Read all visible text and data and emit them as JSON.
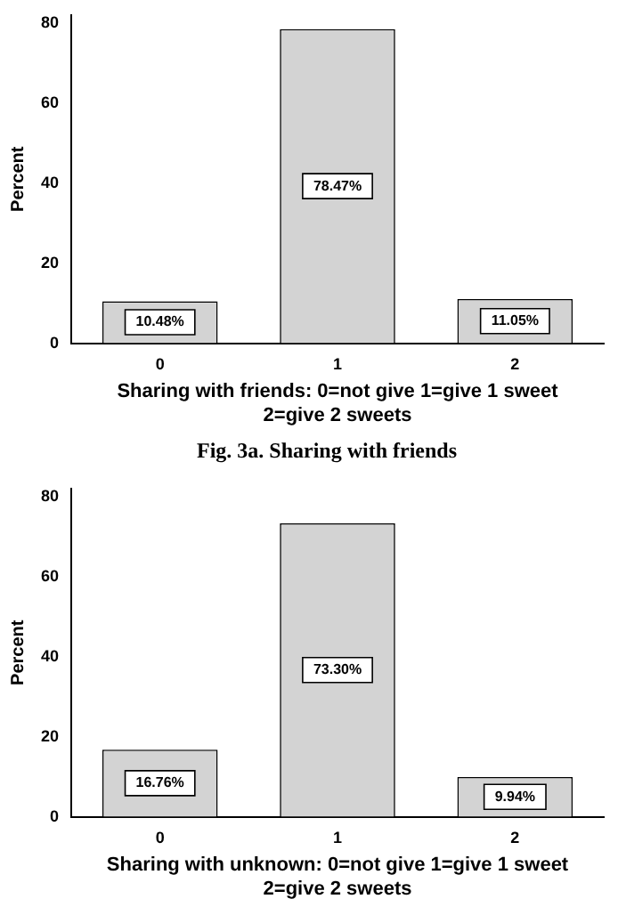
{
  "chart_data": [
    {
      "type": "bar",
      "ylabel": "Percent",
      "xlabel": "Sharing with friends: 0=not give 1=give 1 sweet\n2=give 2 sweets",
      "categories": [
        "0",
        "1",
        "2"
      ],
      "values": [
        10.48,
        78.47,
        11.05
      ],
      "value_labels": [
        "10.48%",
        "78.47%",
        "11.05%"
      ],
      "color": "#d3d3d3",
      "ylim": [
        0,
        82
      ],
      "yticks": [
        0,
        20,
        40,
        60,
        80
      ],
      "grid": false,
      "annotations": [
        "Fig. 3a. Sharing with friends"
      ]
    },
    {
      "type": "bar",
      "ylabel": "Percent",
      "xlabel": "Sharing with unknown: 0=not give 1=give 1 sweet\n2=give 2 sweets",
      "categories": [
        "0",
        "1",
        "2"
      ],
      "values": [
        16.76,
        73.3,
        9.94
      ],
      "value_labels": [
        "16.76%",
        "73.30%",
        "9.94%"
      ],
      "color": "#d3d3d3",
      "ylim": [
        0,
        82
      ],
      "yticks": [
        0,
        20,
        40,
        60,
        80
      ],
      "grid": false
    }
  ]
}
